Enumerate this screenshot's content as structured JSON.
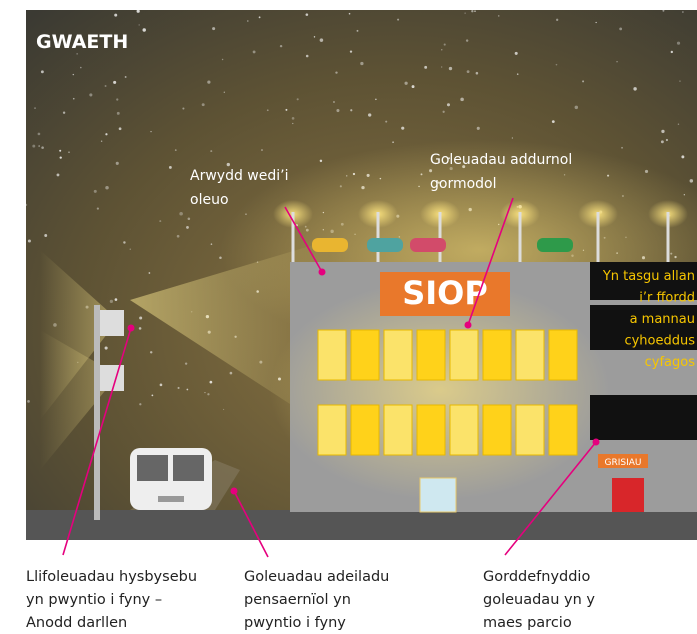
{
  "title": "GWAETH",
  "sign": "SIOP",
  "stairs_sign": "GRISIAU",
  "callouts": [
    {
      "lines": [
        "Arwydd wedi’i",
        "oleuo"
      ]
    },
    {
      "lines": [
        "Goleuadau addurnol",
        "gormodol"
      ]
    },
    {
      "lines": [
        "Yn tasgu allan",
        "i’r ffordd",
        "a mannau",
        "cyhoeddus",
        "cyfagos"
      ]
    }
  ],
  "captions": [
    {
      "lines": [
        "Llifoleuadau hysbysebu",
        "yn pwyntio i fyny –",
        "Anodd darllen"
      ]
    },
    {
      "lines": [
        "Goleuadau adeiladu",
        "pensaernïol yn",
        "pwyntio i fyny"
      ]
    },
    {
      "lines": [
        "Gorddefnyddio",
        "goleuadau yn y",
        "maes parcio"
      ]
    }
  ]
}
